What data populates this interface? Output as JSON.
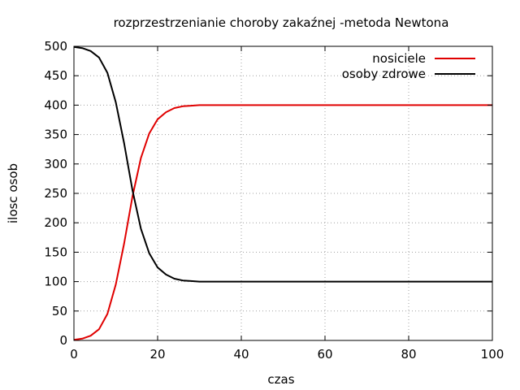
{
  "chart_data": {
    "type": "line",
    "title": "rozprzestrzenianie choroby zakaźnej -metoda Newtona",
    "xlabel": "czas",
    "ylabel": "ilosc osob",
    "xlim": [
      0,
      100
    ],
    "ylim": [
      0,
      500
    ],
    "grid": true,
    "legend_position": "top-right",
    "x_ticks": [
      "0",
      "20",
      "40",
      "60",
      "80",
      "100"
    ],
    "y_ticks": [
      "0",
      "50",
      "100",
      "150",
      "200",
      "250",
      "300",
      "350",
      "400",
      "450",
      "500"
    ],
    "series": [
      {
        "name": "nosiciele",
        "color": "#e00000",
        "x": [
          0,
          2,
          4,
          6,
          8,
          10,
          12,
          14,
          16,
          18,
          20,
          22,
          24,
          26,
          28,
          30,
          35,
          40,
          50,
          60,
          70,
          80,
          90,
          100
        ],
        "y": [
          1,
          3,
          8,
          19,
          45,
          95,
          165,
          245,
          310,
          352,
          376,
          388,
          395,
          398,
          399,
          400,
          400,
          400,
          400,
          400,
          400,
          400,
          400,
          400
        ]
      },
      {
        "name": "osoby zdrowe",
        "color": "#000000",
        "x": [
          0,
          2,
          4,
          6,
          8,
          10,
          12,
          14,
          16,
          18,
          20,
          22,
          24,
          26,
          28,
          30,
          35,
          40,
          50,
          60,
          70,
          80,
          90,
          100
        ],
        "y": [
          499,
          497,
          492,
          481,
          455,
          405,
          335,
          255,
          190,
          148,
          124,
          112,
          105,
          102,
          101,
          100,
          100,
          100,
          100,
          100,
          100,
          100,
          100,
          100
        ]
      }
    ]
  }
}
